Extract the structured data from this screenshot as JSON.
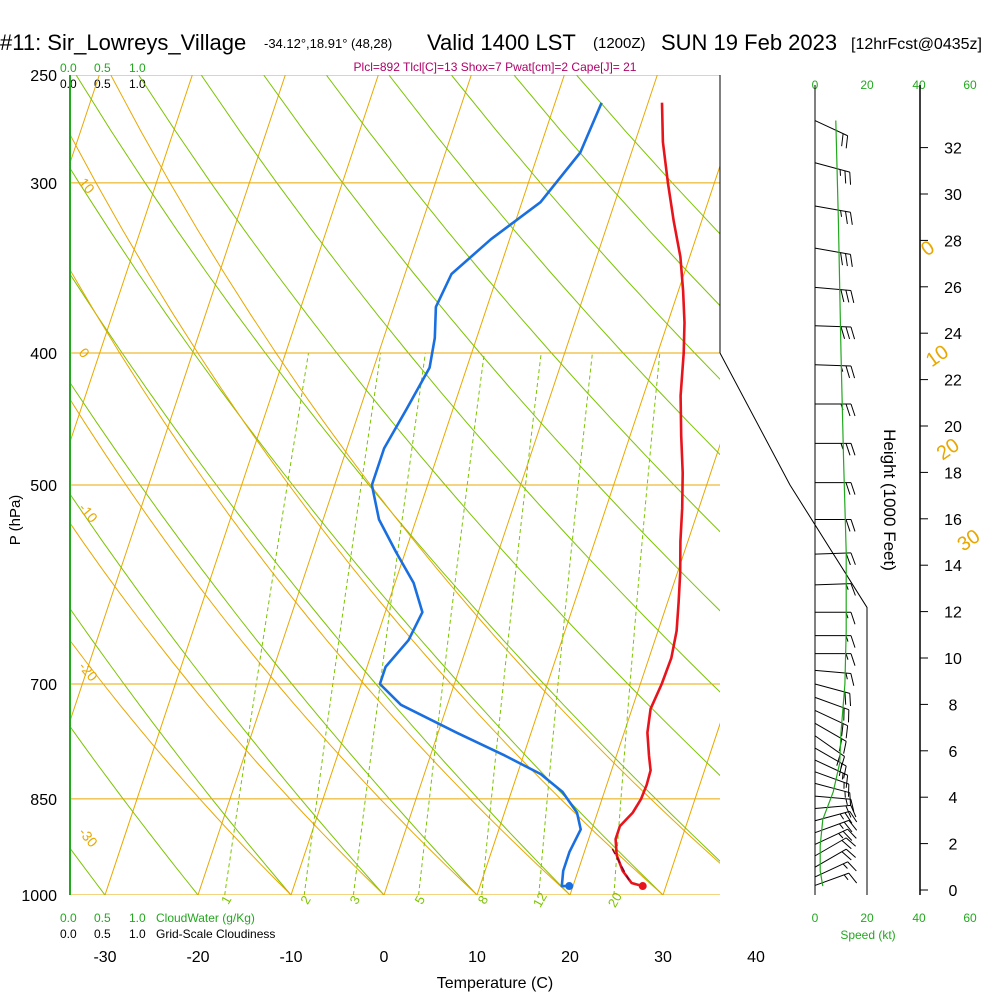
{
  "header": {
    "station": "#11: Sir_Lowreys_Village",
    "coords": "-34.12°,18.91° (48,28)",
    "valid": "Valid 1400 LST",
    "valid_utc": "(1200Z)",
    "date": "SUN 19 Feb 2023",
    "forecast": "[12hrFcst@0435z]"
  },
  "indices": "Plcl=892 Tlcl[C]=13 Shox=7 Pwat[cm]=2 Cape[J]= 21",
  "colors": {
    "temperature": "#e8141c",
    "dewpoint": "#1a6fe0",
    "isotherm": "#e8a800",
    "dry_adiabat": "#7cc400",
    "mixing_ratio": "#7cc400",
    "green_text": "#22a81e",
    "indices_text": "#b0006a",
    "wind_profile": "#22a81e"
  },
  "chart_data": {
    "type": "line",
    "xlabel": "Temperature (C)",
    "ylabel": "P (hPa)",
    "right_label": "Height (1000 Feet)",
    "x_ticks": [
      "-30",
      "-20",
      "-10",
      "0",
      "10",
      "20",
      "30",
      "40"
    ],
    "x_tick_values": [
      -30,
      -20,
      -10,
      0,
      10,
      20,
      30,
      40
    ],
    "y_ticks": [
      "250",
      "300",
      "400",
      "500",
      "700",
      "850",
      "1000"
    ],
    "y_tick_values": [
      250,
      300,
      400,
      500,
      700,
      850,
      1000
    ],
    "height_ticks": [
      "0",
      "2",
      "4",
      "6",
      "8",
      "10",
      "12",
      "14",
      "16",
      "18",
      "20",
      "22",
      "24",
      "26",
      "28",
      "30",
      "32"
    ],
    "height_tick_values": [
      0,
      2,
      4,
      6,
      8,
      10,
      12,
      14,
      16,
      18,
      20,
      22,
      24,
      26,
      28,
      30,
      32
    ],
    "xlim": [
      -34,
      36
    ],
    "ylim": [
      1000,
      250
    ],
    "isotherm_labels": [
      {
        "text": "10",
        "t": -34,
        "p": 300
      },
      {
        "text": "0",
        "t": -34,
        "p": 400
      },
      {
        "text": "-10",
        "t": -34,
        "p": 520
      },
      {
        "text": "-20",
        "t": -34,
        "p": 680
      },
      {
        "text": "-30",
        "t": -34,
        "p": 900
      }
    ],
    "adiabat_labels": [
      {
        "text": "0",
        "t": 35.5,
        "p": 340
      },
      {
        "text": "10",
        "t": 40,
        "p": 410
      },
      {
        "text": "20",
        "t": 44.5,
        "p": 480
      },
      {
        "text": "30",
        "t": 50,
        "p": 560
      }
    ],
    "mixing_labels": [
      "1",
      "2",
      "3",
      "5",
      "8",
      "12",
      "20"
    ],
    "mixing_values": [
      1,
      2,
      3,
      5,
      8,
      12,
      20
    ],
    "series": [
      {
        "name": "Temperature",
        "points": [
          [
            1.5,
            262
          ],
          [
            3,
            280
          ],
          [
            5,
            300
          ],
          [
            7,
            320
          ],
          [
            9,
            340
          ],
          [
            10.5,
            360
          ],
          [
            11.8,
            380
          ],
          [
            12.8,
            400
          ],
          [
            14,
            430
          ],
          [
            15.5,
            460
          ],
          [
            17,
            490
          ],
          [
            18.2,
            520
          ],
          [
            19.2,
            550
          ],
          [
            20.3,
            580
          ],
          [
            21.2,
            610
          ],
          [
            22,
            640
          ],
          [
            22.4,
            670
          ],
          [
            22.3,
            700
          ],
          [
            22,
            730
          ],
          [
            22.5,
            760
          ],
          [
            23.5,
            790
          ],
          [
            24.2,
            810
          ],
          [
            24.3,
            830
          ],
          [
            24.2,
            850
          ],
          [
            23.8,
            870
          ],
          [
            22.9,
            890
          ],
          [
            22.9,
            910
          ],
          [
            23.6,
            935
          ],
          [
            24.8,
            960
          ],
          [
            26.2,
            980
          ],
          [
            27.5,
            985
          ]
        ]
      },
      {
        "name": "Dewpoint",
        "points": [
          [
            -5,
            262
          ],
          [
            -5.5,
            285
          ],
          [
            -8,
            310
          ],
          [
            -12,
            330
          ],
          [
            -15,
            350
          ],
          [
            -15.5,
            370
          ],
          [
            -14.5,
            390
          ],
          [
            -14,
            410
          ],
          [
            -15,
            440
          ],
          [
            -16,
            470
          ],
          [
            -16,
            500
          ],
          [
            -14,
            530
          ],
          [
            -11,
            560
          ],
          [
            -8,
            590
          ],
          [
            -6,
            620
          ],
          [
            -6.5,
            650
          ],
          [
            -8,
            680
          ],
          [
            -8,
            700
          ],
          [
            -5,
            725
          ],
          [
            2,
            760
          ],
          [
            8,
            790
          ],
          [
            12.5,
            815
          ],
          [
            15.5,
            840
          ],
          [
            17.8,
            870
          ],
          [
            18.8,
            895
          ],
          [
            18.4,
            930
          ],
          [
            18.4,
            960
          ],
          [
            18.8,
            985
          ],
          [
            19.6,
            985
          ]
        ]
      }
    ],
    "parcel_dashed": [
      [
        22.9,
        925
      ],
      [
        25.8,
        975
      ]
    ],
    "surface_temperature_marker": [
      27.5,
      985
    ],
    "surface_dewpoint_marker": [
      19.6,
      985
    ],
    "left_scale": {
      "top_green": [
        "0.0",
        "0.5",
        "1.0"
      ],
      "top_black": [
        "0.0",
        "0.5",
        "1.0"
      ],
      "bottom_green": [
        "0.0",
        "0.5",
        "1.0",
        "CloudWater (g/Kg)"
      ],
      "bottom_black": [
        "0.0",
        "0.5",
        "1.0",
        "Grid-Scale Cloudiness"
      ]
    },
    "speed_scale": {
      "top_ticks": [
        "0",
        "20",
        "40",
        "60"
      ],
      "bottom_ticks": [
        "0",
        "20",
        "40",
        "60"
      ],
      "label": "Speed (kt)"
    },
    "wind_barbs": [
      {
        "p": 270,
        "dir": 295,
        "kt": 20
      },
      {
        "p": 290,
        "dir": 285,
        "kt": 25
      },
      {
        "p": 312,
        "dir": 280,
        "kt": 25
      },
      {
        "p": 335,
        "dir": 280,
        "kt": 30
      },
      {
        "p": 358,
        "dir": 275,
        "kt": 30
      },
      {
        "p": 382,
        "dir": 272,
        "kt": 30
      },
      {
        "p": 408,
        "dir": 272,
        "kt": 25
      },
      {
        "p": 436,
        "dir": 270,
        "kt": 25
      },
      {
        "p": 466,
        "dir": 270,
        "kt": 25
      },
      {
        "p": 498,
        "dir": 270,
        "kt": 20
      },
      {
        "p": 530,
        "dir": 270,
        "kt": 20
      },
      {
        "p": 562,
        "dir": 268,
        "kt": 20
      },
      {
        "p": 592,
        "dir": 268,
        "kt": 15
      },
      {
        "p": 620,
        "dir": 270,
        "kt": 15
      },
      {
        "p": 645,
        "dir": 270,
        "kt": 15
      },
      {
        "p": 665,
        "dir": 270,
        "kt": 15
      },
      {
        "p": 684,
        "dir": 275,
        "kt": 15
      },
      {
        "p": 700,
        "dir": 285,
        "kt": 20
      },
      {
        "p": 716,
        "dir": 290,
        "kt": 20
      },
      {
        "p": 732,
        "dir": 295,
        "kt": 20
      },
      {
        "p": 748,
        "dir": 300,
        "kt": 20
      },
      {
        "p": 764,
        "dir": 305,
        "kt": 20
      },
      {
        "p": 780,
        "dir": 300,
        "kt": 20
      },
      {
        "p": 796,
        "dir": 295,
        "kt": 15
      },
      {
        "p": 812,
        "dir": 290,
        "kt": 15
      },
      {
        "p": 828,
        "dir": 285,
        "kt": 15
      },
      {
        "p": 846,
        "dir": 275,
        "kt": 15
      },
      {
        "p": 864,
        "dir": 265,
        "kt": 20
      },
      {
        "p": 882,
        "dir": 255,
        "kt": 25
      },
      {
        "p": 900,
        "dir": 250,
        "kt": 25
      },
      {
        "p": 918,
        "dir": 245,
        "kt": 25
      },
      {
        "p": 936,
        "dir": 240,
        "kt": 20
      },
      {
        "p": 954,
        "dir": 240,
        "kt": 20
      },
      {
        "p": 970,
        "dir": 245,
        "kt": 15
      },
      {
        "p": 984,
        "dir": 250,
        "kt": 15
      }
    ],
    "wind_speed_profile": [
      [
        8,
        270
      ],
      [
        9,
        320
      ],
      [
        10,
        400
      ],
      [
        11,
        480
      ],
      [
        12,
        560
      ],
      [
        12,
        640
      ],
      [
        11.5,
        700
      ],
      [
        10,
        760
      ],
      [
        9.5,
        800
      ],
      [
        7,
        840
      ],
      [
        3,
        880
      ],
      [
        2,
        920
      ],
      [
        2,
        960
      ],
      [
        3,
        985
      ]
    ]
  }
}
